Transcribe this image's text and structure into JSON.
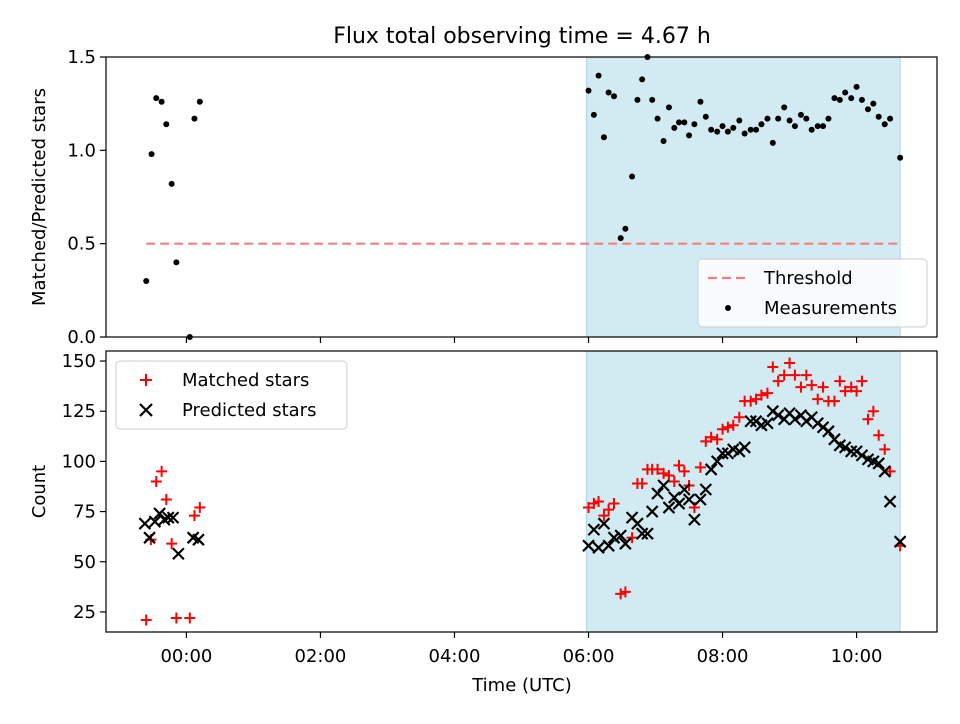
{
  "chart_data": {
    "title": "Flux total observing time = 4.67 h",
    "colors": {
      "matched": "#ff0000",
      "predicted": "#000000",
      "threshold": "#f08080",
      "span": "#add8e6",
      "points": "#000000"
    },
    "shaded_span": {
      "start_h": 5.97,
      "end_h": 10.65
    },
    "x_axis": {
      "label": "Time (UTC)",
      "range": [
        -1.2,
        11.2
      ],
      "ticks": [
        {
          "v": 0,
          "label": "00:00"
        },
        {
          "v": 2,
          "label": "02:00"
        },
        {
          "v": 4,
          "label": "04:00"
        },
        {
          "v": 6,
          "label": "06:00"
        },
        {
          "v": 8,
          "label": "08:00"
        },
        {
          "v": 10,
          "label": "10:00"
        }
      ]
    },
    "panels": [
      {
        "type": "scatter",
        "ylabel": "Matched/Predicted stars",
        "ylim": [
          0,
          1.5
        ],
        "yticks": [
          {
            "v": 0,
            "label": "0.0"
          },
          {
            "v": 0.5,
            "label": "0.5"
          },
          {
            "v": 1.0,
            "label": "1.0"
          },
          {
            "v": 1.5,
            "label": "1.5"
          }
        ],
        "threshold": {
          "name": "Threshold",
          "value": 0.5,
          "x_start": -0.6,
          "x_end": 10.65
        },
        "series": [
          {
            "name": "Measurements",
            "marker": "dot",
            "points": [
              [
                -0.6,
                0.3
              ],
              [
                -0.52,
                0.98
              ],
              [
                -0.45,
                1.28
              ],
              [
                -0.37,
                1.26
              ],
              [
                -0.3,
                1.14
              ],
              [
                -0.22,
                0.82
              ],
              [
                -0.15,
                0.4
              ],
              [
                0.05,
                0.0
              ],
              [
                0.12,
                1.17
              ],
              [
                0.2,
                1.26
              ],
              [
                6.0,
                1.32
              ],
              [
                6.08,
                1.19
              ],
              [
                6.15,
                1.4
              ],
              [
                6.23,
                1.07
              ],
              [
                6.3,
                1.31
              ],
              [
                6.38,
                1.29
              ],
              [
                6.48,
                0.53
              ],
              [
                6.55,
                0.58
              ],
              [
                6.65,
                0.86
              ],
              [
                6.73,
                1.27
              ],
              [
                6.8,
                1.38
              ],
              [
                6.88,
                1.5
              ],
              [
                6.95,
                1.27
              ],
              [
                7.03,
                1.17
              ],
              [
                7.12,
                1.05
              ],
              [
                7.2,
                1.23
              ],
              [
                7.28,
                1.12
              ],
              [
                7.35,
                1.15
              ],
              [
                7.43,
                1.15
              ],
              [
                7.5,
                1.08
              ],
              [
                7.58,
                1.14
              ],
              [
                7.67,
                1.26
              ],
              [
                7.75,
                1.18
              ],
              [
                7.83,
                1.11
              ],
              [
                7.92,
                1.1
              ],
              [
                8.0,
                1.13
              ],
              [
                8.08,
                1.1
              ],
              [
                8.16,
                1.12
              ],
              [
                8.25,
                1.16
              ],
              [
                8.33,
                1.09
              ],
              [
                8.42,
                1.11
              ],
              [
                8.5,
                1.11
              ],
              [
                8.58,
                1.14
              ],
              [
                8.67,
                1.17
              ],
              [
                8.75,
                1.04
              ],
              [
                8.83,
                1.17
              ],
              [
                8.92,
                1.23
              ],
              [
                9.0,
                1.16
              ],
              [
                9.08,
                1.13
              ],
              [
                9.17,
                1.19
              ],
              [
                9.25,
                1.17
              ],
              [
                9.33,
                1.11
              ],
              [
                9.42,
                1.13
              ],
              [
                9.5,
                1.13
              ],
              [
                9.58,
                1.17
              ],
              [
                9.67,
                1.28
              ],
              [
                9.75,
                1.27
              ],
              [
                9.83,
                1.31
              ],
              [
                9.92,
                1.28
              ],
              [
                10.0,
                1.34
              ],
              [
                10.08,
                1.27
              ],
              [
                10.17,
                1.22
              ],
              [
                10.25,
                1.25
              ],
              [
                10.33,
                1.18
              ],
              [
                10.42,
                1.14
              ],
              [
                10.5,
                1.17
              ],
              [
                10.65,
                0.96
              ]
            ]
          }
        ],
        "legend": [
          {
            "name": "Threshold",
            "marker": "dash"
          },
          {
            "name": "Measurements",
            "marker": "dot"
          }
        ],
        "legend_position": "lower-right"
      },
      {
        "type": "scatter",
        "ylabel": "Count",
        "ylim": [
          15,
          155
        ],
        "yticks": [
          {
            "v": 25,
            "label": "25"
          },
          {
            "v": 50,
            "label": "50"
          },
          {
            "v": 75,
            "label": "75"
          },
          {
            "v": 100,
            "label": "100"
          },
          {
            "v": 125,
            "label": "125"
          },
          {
            "v": 150,
            "label": "150"
          }
        ],
        "series": [
          {
            "name": "Matched stars",
            "marker": "plus",
            "points": [
              [
                -0.6,
                21
              ],
              [
                -0.53,
                61
              ],
              [
                -0.45,
                90
              ],
              [
                -0.37,
                95
              ],
              [
                -0.3,
                81
              ],
              [
                -0.22,
                59
              ],
              [
                -0.15,
                22
              ],
              [
                0.05,
                22
              ],
              [
                0.12,
                73
              ],
              [
                0.2,
                77
              ],
              [
                6.0,
                77
              ],
              [
                6.08,
                79
              ],
              [
                6.15,
                80
              ],
              [
                6.23,
                73
              ],
              [
                6.3,
                76
              ],
              [
                6.38,
                79
              ],
              [
                6.48,
                34
              ],
              [
                6.55,
                35
              ],
              [
                6.65,
                62
              ],
              [
                6.73,
                89
              ],
              [
                6.8,
                89
              ],
              [
                6.88,
                96
              ],
              [
                6.95,
                96
              ],
              [
                7.03,
                96
              ],
              [
                7.12,
                94
              ],
              [
                7.2,
                93
              ],
              [
                7.28,
                90
              ],
              [
                7.35,
                98
              ],
              [
                7.43,
                95
              ],
              [
                7.5,
                88
              ],
              [
                7.58,
                77
              ],
              [
                7.67,
                97
              ],
              [
                7.75,
                110
              ],
              [
                7.83,
                112
              ],
              [
                7.92,
                111
              ],
              [
                8.0,
                116
              ],
              [
                8.08,
                117
              ],
              [
                8.16,
                118
              ],
              [
                8.25,
                122
              ],
              [
                8.33,
                130
              ],
              [
                8.42,
                130
              ],
              [
                8.5,
                131
              ],
              [
                8.58,
                133
              ],
              [
                8.67,
                134
              ],
              [
                8.75,
                147
              ],
              [
                8.83,
                140
              ],
              [
                8.92,
                143
              ],
              [
                9.0,
                149
              ],
              [
                9.08,
                143
              ],
              [
                9.17,
                137
              ],
              [
                9.25,
                143
              ],
              [
                9.33,
                138
              ],
              [
                9.42,
                131
              ],
              [
                9.5,
                137
              ],
              [
                9.58,
                130
              ],
              [
                9.67,
                130
              ],
              [
                9.75,
                140
              ],
              [
                9.83,
                135
              ],
              [
                9.92,
                137
              ],
              [
                10.0,
                135
              ],
              [
                10.08,
                140
              ],
              [
                10.17,
                121
              ],
              [
                10.25,
                125
              ],
              [
                10.33,
                113
              ],
              [
                10.42,
                106
              ],
              [
                10.5,
                95
              ],
              [
                10.65,
                58
              ]
            ]
          },
          {
            "name": "Predicted stars",
            "marker": "x",
            "points": [
              [
                -0.62,
                69
              ],
              [
                -0.55,
                62
              ],
              [
                -0.47,
                70
              ],
              [
                -0.4,
                74
              ],
              [
                -0.33,
                71
              ],
              [
                -0.27,
                72
              ],
              [
                -0.2,
                72
              ],
              [
                -0.12,
                54
              ],
              [
                0.1,
                62
              ],
              [
                0.18,
                61
              ],
              [
                6.0,
                58
              ],
              [
                6.08,
                66
              ],
              [
                6.15,
                57
              ],
              [
                6.23,
                69
              ],
              [
                6.3,
                58
              ],
              [
                6.38,
                62
              ],
              [
                6.48,
                63
              ],
              [
                6.55,
                59
              ],
              [
                6.65,
                72
              ],
              [
                6.73,
                69
              ],
              [
                6.8,
                64
              ],
              [
                6.88,
                64
              ],
              [
                6.95,
                75
              ],
              [
                7.03,
                84
              ],
              [
                7.12,
                88
              ],
              [
                7.2,
                77
              ],
              [
                7.28,
                82
              ],
              [
                7.35,
                79
              ],
              [
                7.43,
                86
              ],
              [
                7.5,
                81
              ],
              [
                7.58,
                71
              ],
              [
                7.67,
                81
              ],
              [
                7.75,
                86
              ],
              [
                7.83,
                96
              ],
              [
                7.92,
                100
              ],
              [
                8.0,
                104
              ],
              [
                8.08,
                104
              ],
              [
                8.16,
                106
              ],
              [
                8.25,
                105
              ],
              [
                8.33,
                107
              ],
              [
                8.42,
                120
              ],
              [
                8.5,
                120
              ],
              [
                8.58,
                118
              ],
              [
                8.67,
                119
              ],
              [
                8.75,
                125
              ],
              [
                8.83,
                123
              ],
              [
                8.92,
                121
              ],
              [
                9.0,
                124
              ],
              [
                9.08,
                121
              ],
              [
                9.17,
                123
              ],
              [
                9.25,
                120
              ],
              [
                9.33,
                122
              ],
              [
                9.42,
                119
              ],
              [
                9.5,
                117
              ],
              [
                9.58,
                115
              ],
              [
                9.67,
                111
              ],
              [
                9.75,
                108
              ],
              [
                9.83,
                107
              ],
              [
                9.92,
                105
              ],
              [
                10.0,
                105
              ],
              [
                10.08,
                103
              ],
              [
                10.17,
                101
              ],
              [
                10.25,
                100
              ],
              [
                10.33,
                99
              ],
              [
                10.42,
                95
              ],
              [
                10.5,
                80
              ],
              [
                10.65,
                60
              ]
            ]
          }
        ],
        "legend": [
          {
            "name": "Matched stars",
            "marker": "plus"
          },
          {
            "name": "Predicted stars",
            "marker": "x"
          }
        ],
        "legend_position": "upper-left"
      }
    ]
  }
}
